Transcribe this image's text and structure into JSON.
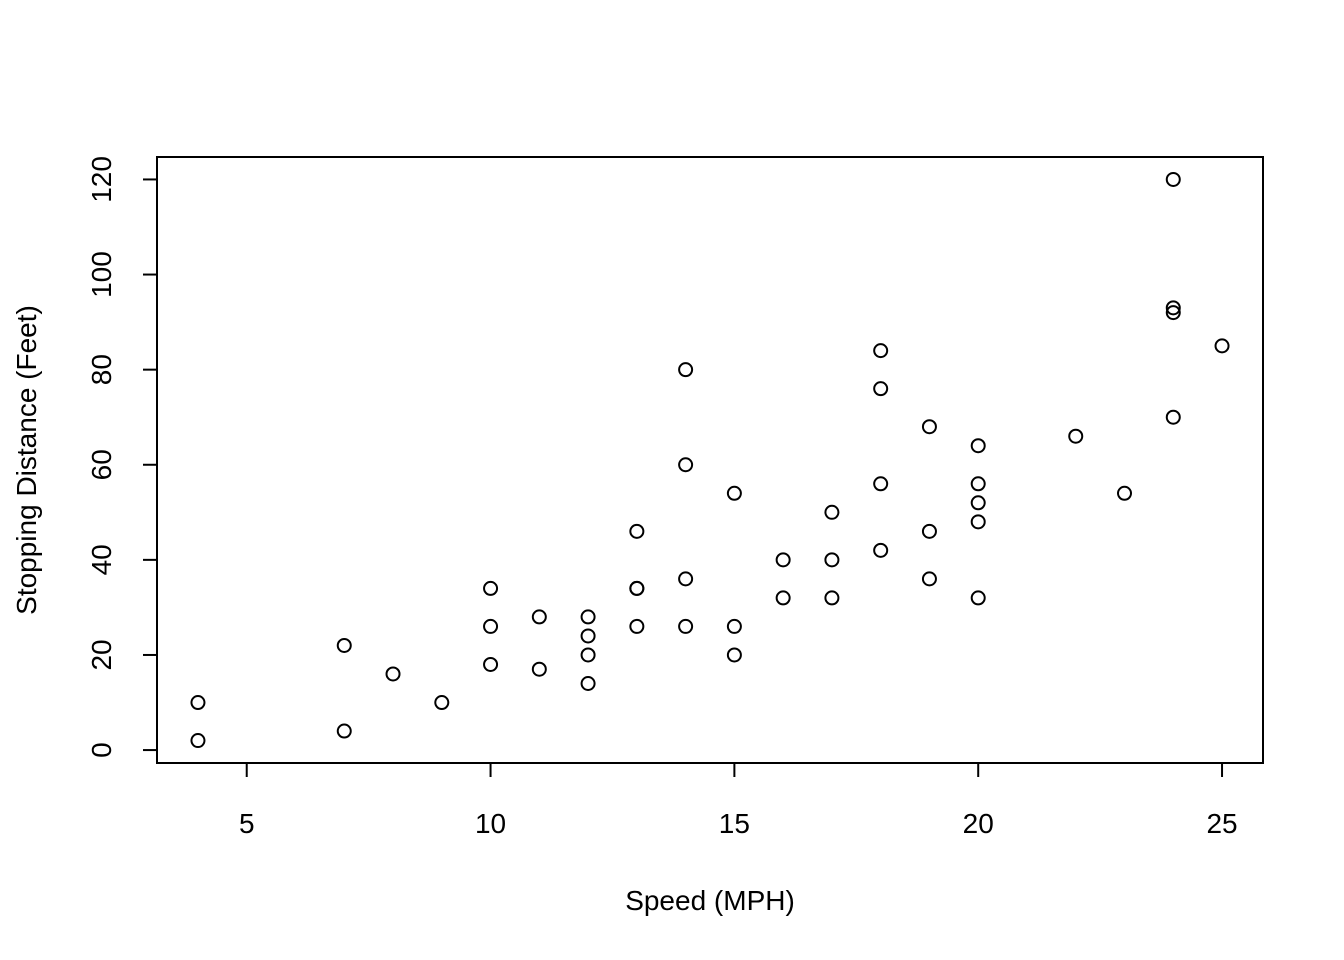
{
  "chart_data": {
    "type": "scatter",
    "title": "",
    "xlabel": "Speed (MPH)",
    "ylabel": "Stopping Distance (Feet)",
    "xlim": [
      3.16,
      25.84
    ],
    "ylim": [
      -2.72,
      124.72
    ],
    "x_ticks": [
      5,
      10,
      15,
      20,
      25
    ],
    "y_ticks": [
      0,
      20,
      40,
      60,
      80,
      100,
      120
    ],
    "x_tick_labels": [
      "5",
      "10",
      "15",
      "20",
      "25"
    ],
    "y_tick_labels": [
      "0",
      "20",
      "40",
      "60",
      "80",
      "100",
      "120"
    ],
    "grid": false,
    "marker": "open-circle",
    "colors": {
      "points": "#000000",
      "axes": "#000000",
      "background": "#ffffff"
    },
    "points": [
      {
        "x": 4,
        "y": 2
      },
      {
        "x": 4,
        "y": 10
      },
      {
        "x": 7,
        "y": 4
      },
      {
        "x": 7,
        "y": 22
      },
      {
        "x": 8,
        "y": 16
      },
      {
        "x": 9,
        "y": 10
      },
      {
        "x": 10,
        "y": 18
      },
      {
        "x": 10,
        "y": 26
      },
      {
        "x": 10,
        "y": 34
      },
      {
        "x": 11,
        "y": 17
      },
      {
        "x": 11,
        "y": 28
      },
      {
        "x": 12,
        "y": 14
      },
      {
        "x": 12,
        "y": 20
      },
      {
        "x": 12,
        "y": 24
      },
      {
        "x": 12,
        "y": 28
      },
      {
        "x": 13,
        "y": 26
      },
      {
        "x": 13,
        "y": 34
      },
      {
        "x": 13,
        "y": 34
      },
      {
        "x": 13,
        "y": 46
      },
      {
        "x": 14,
        "y": 26
      },
      {
        "x": 14,
        "y": 36
      },
      {
        "x": 14,
        "y": 60
      },
      {
        "x": 14,
        "y": 80
      },
      {
        "x": 15,
        "y": 20
      },
      {
        "x": 15,
        "y": 26
      },
      {
        "x": 15,
        "y": 54
      },
      {
        "x": 16,
        "y": 32
      },
      {
        "x": 16,
        "y": 40
      },
      {
        "x": 17,
        "y": 32
      },
      {
        "x": 17,
        "y": 40
      },
      {
        "x": 17,
        "y": 50
      },
      {
        "x": 18,
        "y": 42
      },
      {
        "x": 18,
        "y": 56
      },
      {
        "x": 18,
        "y": 76
      },
      {
        "x": 18,
        "y": 84
      },
      {
        "x": 19,
        "y": 36
      },
      {
        "x": 19,
        "y": 46
      },
      {
        "x": 19,
        "y": 68
      },
      {
        "x": 20,
        "y": 32
      },
      {
        "x": 20,
        "y": 48
      },
      {
        "x": 20,
        "y": 52
      },
      {
        "x": 20,
        "y": 56
      },
      {
        "x": 20,
        "y": 64
      },
      {
        "x": 22,
        "y": 66
      },
      {
        "x": 23,
        "y": 54
      },
      {
        "x": 24,
        "y": 70
      },
      {
        "x": 24,
        "y": 92
      },
      {
        "x": 24,
        "y": 93
      },
      {
        "x": 24,
        "y": 120
      },
      {
        "x": 25,
        "y": 85
      }
    ]
  }
}
